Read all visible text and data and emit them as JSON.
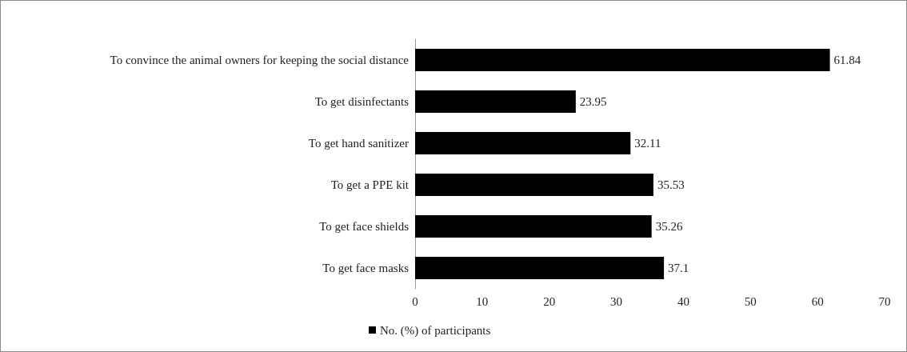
{
  "chart_data": {
    "type": "bar",
    "orientation": "horizontal",
    "categories": [
      "To convince the animal owners for keeping the social distance",
      "To get disinfectants",
      "To get hand sanitizer",
      "To get a PPE kit",
      "To get face shields",
      "To get face masks"
    ],
    "series": [
      {
        "name": "No. (%) of participants",
        "color": "#000000",
        "values": [
          61.84,
          23.95,
          32.11,
          35.53,
          35.26,
          37.1
        ]
      }
    ],
    "xlim": [
      0,
      70
    ],
    "xticks": [
      0,
      10,
      20,
      30,
      40,
      50,
      60,
      70
    ],
    "data_labels": true,
    "grid": false,
    "legend": "bottom left"
  }
}
